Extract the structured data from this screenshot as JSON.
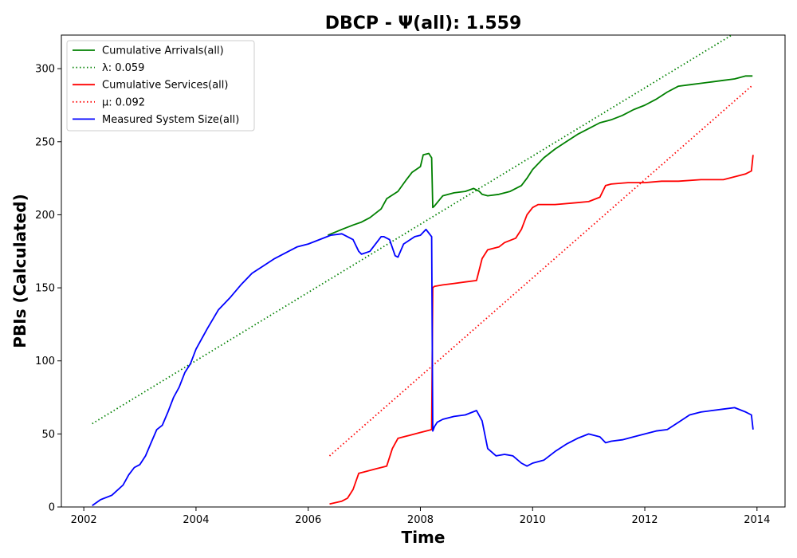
{
  "chart_data": {
    "type": "line",
    "title": "DBCP -  Ψ(all): 1.559",
    "xlabel": "Time",
    "ylabel": "PBIs (Calculated)",
    "xlim": [
      2001.6,
      2014.5
    ],
    "ylim": [
      0,
      323
    ],
    "x_ticks": [
      2002,
      2004,
      2006,
      2008,
      2010,
      2012,
      2014
    ],
    "y_ticks": [
      0,
      50,
      100,
      150,
      200,
      250,
      300
    ],
    "grid": false,
    "legend_position": "top-left",
    "series": [
      {
        "name": "Cumulative Arrivals(all)",
        "color": "#008000",
        "style": "solid",
        "x": [
          2006.35,
          2006.6,
          2006.8,
          2006.95,
          2007.1,
          2007.3,
          2007.4,
          2007.6,
          2007.75,
          2007.85,
          2008.0,
          2008.05,
          2008.15,
          2008.2,
          2008.22,
          2008.25,
          2008.4,
          2008.6,
          2008.8,
          2008.95,
          2009.05,
          2009.1,
          2009.2,
          2009.4,
          2009.6,
          2009.8,
          2009.9,
          2010.0,
          2010.2,
          2010.4,
          2010.6,
          2010.8,
          2011.0,
          2011.2,
          2011.4,
          2011.6,
          2011.8,
          2012.0,
          2012.2,
          2012.4,
          2012.6,
          2012.8,
          2013.0,
          2013.2,
          2013.4,
          2013.6,
          2013.8,
          2013.92
        ],
        "y": [
          186,
          190,
          193,
          195,
          198,
          204,
          211,
          216,
          224,
          229,
          233,
          241,
          242,
          239,
          205,
          206,
          213,
          215,
          216,
          218,
          216,
          214,
          213,
          214,
          216,
          220,
          225,
          231,
          239,
          245,
          250,
          255,
          259,
          263,
          265,
          268,
          272,
          275,
          279,
          284,
          288,
          289,
          290,
          291,
          292,
          293,
          295,
          295
        ]
      },
      {
        "name": "λ: 0.059",
        "color": "#008000",
        "style": "dotted",
        "x": [
          2002.15,
          2013.55
        ],
        "y": [
          57,
          323
        ]
      },
      {
        "name": "Cumulative Services(all)",
        "color": "#ff0000",
        "style": "solid",
        "x": [
          2006.38,
          2006.6,
          2006.7,
          2006.8,
          2006.9,
          2007.0,
          2007.2,
          2007.4,
          2007.5,
          2007.6,
          2007.8,
          2008.0,
          2008.1,
          2008.2,
          2008.22,
          2008.25,
          2008.4,
          2008.6,
          2008.8,
          2009.0,
          2009.1,
          2009.2,
          2009.4,
          2009.5,
          2009.7,
          2009.8,
          2009.9,
          2010.0,
          2010.1,
          2010.2,
          2010.4,
          2010.7,
          2011.0,
          2011.2,
          2011.3,
          2011.4,
          2011.7,
          2012.0,
          2012.3,
          2012.6,
          2013.0,
          2013.4,
          2013.6,
          2013.8,
          2013.9,
          2013.93
        ],
        "y": [
          2,
          4,
          6,
          12,
          23,
          24,
          26,
          28,
          40,
          47,
          49,
          51,
          52,
          53,
          150,
          151,
          152,
          153,
          154,
          155,
          170,
          176,
          178,
          181,
          184,
          190,
          200,
          205,
          207,
          207,
          207,
          208,
          209,
          212,
          220,
          221,
          222,
          222,
          223,
          223,
          224,
          224,
          226,
          228,
          230,
          241
        ]
      },
      {
        "name": "μ: 0.092",
        "color": "#ff0000",
        "style": "dotted",
        "x": [
          2006.38,
          2013.93
        ],
        "y": [
          35,
          289
        ]
      },
      {
        "name": "Measured System Size(all)",
        "color": "#0000ff",
        "style": "solid",
        "x": [
          2002.15,
          2002.3,
          2002.5,
          2002.7,
          2002.8,
          2002.9,
          2003.0,
          2003.1,
          2003.2,
          2003.3,
          2003.4,
          2003.5,
          2003.6,
          2003.7,
          2003.8,
          2003.9,
          2004.0,
          2004.2,
          2004.4,
          2004.6,
          2004.8,
          2005.0,
          2005.2,
          2005.4,
          2005.6,
          2005.8,
          2006.0,
          2006.2,
          2006.4,
          2006.6,
          2006.8,
          2006.9,
          2006.95,
          2007.1,
          2007.3,
          2007.35,
          2007.45,
          2007.55,
          2007.6,
          2007.7,
          2007.9,
          2008.0,
          2008.1,
          2008.2,
          2008.22,
          2008.25,
          2008.3,
          2008.4,
          2008.6,
          2008.8,
          2009.0,
          2009.1,
          2009.2,
          2009.35,
          2009.5,
          2009.65,
          2009.8,
          2009.9,
          2010.0,
          2010.2,
          2010.4,
          2010.6,
          2010.8,
          2011.0,
          2011.2,
          2011.3,
          2011.4,
          2011.6,
          2011.8,
          2012.0,
          2012.2,
          2012.4,
          2012.6,
          2012.8,
          2013.0,
          2013.2,
          2013.4,
          2013.6,
          2013.8,
          2013.9,
          2013.93
        ],
        "y": [
          1,
          5,
          8,
          15,
          22,
          27,
          29,
          35,
          44,
          53,
          56,
          65,
          75,
          82,
          92,
          98,
          108,
          122,
          135,
          143,
          152,
          160,
          165,
          170,
          174,
          178,
          180,
          183,
          186,
          187,
          183,
          175,
          173,
          175,
          185,
          185,
          183,
          172,
          171,
          180,
          185,
          186,
          190,
          185,
          52,
          55,
          58,
          60,
          62,
          63,
          66,
          59,
          40,
          35,
          36,
          35,
          30,
          28,
          30,
          32,
          38,
          43,
          47,
          50,
          48,
          44,
          45,
          46,
          48,
          50,
          52,
          53,
          58,
          63,
          65,
          66,
          67,
          68,
          65,
          63,
          53
        ]
      }
    ]
  }
}
